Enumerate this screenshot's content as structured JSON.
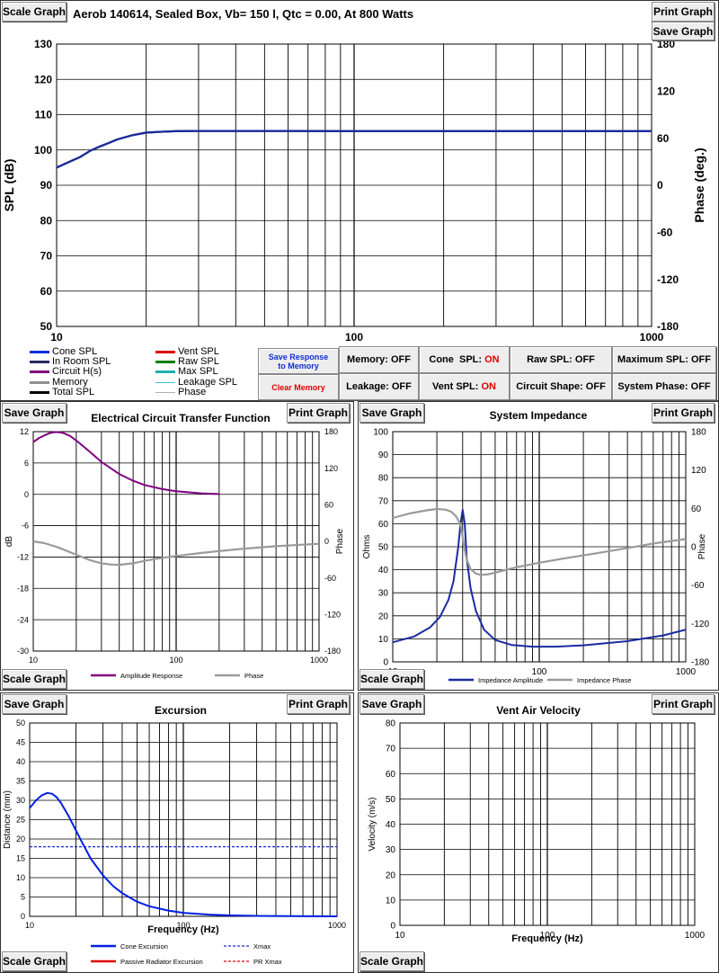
{
  "main": {
    "title": "Aerob 140614,  Sealed Box, Vb= 150 l,  Qtc = 0.00,  At 800 Watts",
    "buttons": {
      "scale": "Scale Graph",
      "print": "Print Graph",
      "save": "Save Graph"
    }
  },
  "legend": {
    "cone": "Cone SPL",
    "room": "In Room SPL",
    "circuit": "Circuit H(s)",
    "memory": "Memory",
    "total": "Total SPL",
    "vent": "Vent SPL",
    "raw": "Raw SPL",
    "max": "Max SPL",
    "leakage": "Leakage SPL",
    "phase": "Phase"
  },
  "controls": {
    "save_response_1": "Save Response",
    "save_response_2": "to Memory",
    "clear_memory": "Clear Memory",
    "memory": "Memory: OFF",
    "leakage": "Leakage: OFF",
    "cone_prefix": "Cone  SPL: ",
    "cone_state": "ON",
    "vent_prefix": "Vent SPL: ",
    "vent_state": "ON",
    "raw": "Raw SPL: OFF",
    "circuit_shape": "Circuit Shape:  OFF",
    "max_spl": "Maximum SPL: OFF",
    "system_phase": "System Phase: OFF"
  },
  "panels": {
    "circuit": {
      "title": "Electrical Circuit Transfer Function"
    },
    "impedance": {
      "title": "System Impedance"
    },
    "excursion": {
      "title": "Excursion"
    },
    "vent": {
      "title": "Vent Air Velocity"
    }
  },
  "chart_data": [
    {
      "id": "spl",
      "type": "line",
      "title": "Aerob 140614,  Sealed Box, Vb= 150 l,  Qtc = 0.00,  At 800 Watts",
      "xscale": "log",
      "xlim": [
        10,
        1000
      ],
      "ylim": [
        50,
        130
      ],
      "y2lim": [
        -180,
        180
      ],
      "ylabel": "SPL (dB)",
      "y2label": "Phase (deg.)",
      "xticks": [
        10,
        100,
        1000
      ],
      "xticklabels": [
        "10",
        "100",
        "1000"
      ],
      "yticks": [
        50,
        60,
        70,
        80,
        90,
        100,
        110,
        120,
        130
      ],
      "yticklabels": [
        "50",
        "60",
        "70",
        "80",
        "90",
        "100",
        "110",
        "120",
        "130"
      ],
      "y2ticks": [
        -180,
        -120,
        -60,
        0,
        60,
        120,
        180
      ],
      "y2ticklabels": [
        "-180",
        "-120",
        "-60",
        "0",
        "60",
        "120",
        "180"
      ],
      "series": [
        {
          "name": "Total SPL",
          "color": "#000000",
          "axis": "y",
          "x": [
            10,
            11,
            12,
            13,
            14,
            15,
            16,
            18,
            20,
            22,
            25,
            30,
            40,
            60,
            100,
            200,
            500,
            1000
          ],
          "y": [
            95,
            96.6,
            98,
            99.8,
            101,
            102,
            103,
            104.2,
            104.9,
            105.1,
            105.3,
            105.4,
            105.4,
            105.4,
            105.3,
            105.3,
            105.3,
            105.3
          ]
        },
        {
          "name": "Cone SPL",
          "color": "#1a2aa0",
          "axis": "y",
          "x": [
            10,
            11,
            12,
            13,
            14,
            15,
            16,
            18,
            20,
            22,
            25,
            30,
            40,
            60,
            100,
            200,
            500,
            1000
          ],
          "y": [
            95,
            96.6,
            98,
            99.8,
            101,
            102,
            103,
            104.2,
            104.9,
            105.1,
            105.3,
            105.4,
            105.4,
            105.4,
            105.3,
            105.3,
            105.3,
            105.3
          ]
        }
      ]
    },
    {
      "id": "circuit",
      "type": "line",
      "title": "Electrical Circuit Transfer Function",
      "xscale": "log",
      "xlim": [
        10,
        1000
      ],
      "ylim": [
        -30,
        12
      ],
      "y2lim": [
        -180,
        180
      ],
      "ylabel": "dB",
      "y2label": "Phase",
      "xticks": [
        10,
        100,
        1000
      ],
      "xticklabels": [
        "10",
        "100",
        "1000"
      ],
      "yticks": [
        -30,
        -24,
        -18,
        -12,
        -6,
        0,
        6,
        12
      ],
      "yticklabels": [
        "-30",
        "-24",
        "-18",
        "-12",
        "-6",
        "0",
        "6",
        "12"
      ],
      "y2ticks": [
        -180,
        -120,
        -60,
        0,
        60,
        120,
        180
      ],
      "y2ticklabels": [
        "-180",
        "-120",
        "-60",
        "0",
        "60",
        "120",
        "180"
      ],
      "legend": [
        "Amplitude Response",
        "Phase"
      ],
      "series": [
        {
          "name": "Amplitude Response",
          "color": "#800080",
          "axis": "y",
          "x": [
            10,
            11,
            12,
            13,
            14,
            15,
            16,
            18,
            20,
            25,
            30,
            40,
            50,
            60,
            80,
            100,
            150,
            200
          ],
          "y": [
            10,
            10.8,
            11.3,
            11.7,
            11.9,
            11.9,
            11.8,
            11.2,
            10.3,
            8.1,
            6.2,
            3.9,
            2.6,
            1.8,
            1,
            0.6,
            0.2,
            0.05
          ]
        },
        {
          "name": "Phase",
          "color": "#9a9a9a",
          "axis": "y2",
          "x": [
            10,
            12,
            15,
            20,
            25,
            30,
            35,
            40,
            50,
            60,
            80,
            100,
            150,
            200,
            300,
            500,
            1000
          ],
          "y": [
            0,
            -3,
            -10,
            -22,
            -31,
            -36,
            -38,
            -38.5,
            -36,
            -32,
            -27,
            -24,
            -19,
            -16,
            -12,
            -8,
            -4
          ]
        }
      ]
    },
    {
      "id": "impedance",
      "type": "line",
      "title": "System Impedance",
      "xscale": "log",
      "xlim": [
        10,
        1000
      ],
      "ylim": [
        0,
        100
      ],
      "y2lim": [
        -180,
        180
      ],
      "ylabel": "Ohms",
      "y2label": "Phase",
      "xticks": [
        10,
        100,
        1000
      ],
      "xticklabels": [
        "10",
        "100",
        "1000"
      ],
      "yticks": [
        0,
        10,
        20,
        30,
        40,
        50,
        60,
        70,
        80,
        90,
        100
      ],
      "yticklabels": [
        "0",
        "10",
        "20",
        "30",
        "40",
        "50",
        "60",
        "70",
        "80",
        "90",
        "100"
      ],
      "y2ticks": [
        -180,
        -120,
        -60,
        0,
        60,
        120,
        180
      ],
      "y2ticklabels": [
        "-180",
        "-120",
        "-60",
        "0",
        "60",
        "120",
        "180"
      ],
      "legend": [
        "Impedance Amplitude",
        "Impedance Phase"
      ],
      "series": [
        {
          "name": "Impedance Amplitude",
          "color": "#1a2aa0",
          "axis": "y",
          "x": [
            10,
            14,
            18,
            21,
            24,
            26,
            28,
            29,
            30,
            31,
            32,
            34,
            37,
            42,
            50,
            65,
            90,
            130,
            200,
            400,
            700,
            1000
          ],
          "y": [
            8.5,
            11,
            15,
            19.5,
            27,
            35,
            50,
            60,
            66,
            60,
            45,
            32,
            22,
            14,
            9.5,
            7.3,
            6.6,
            6.6,
            7.2,
            9,
            11.5,
            14
          ]
        },
        {
          "name": "Impedance Phase",
          "color": "#9a9a9a",
          "axis": "y2",
          "x": [
            10,
            13,
            17,
            20,
            23,
            25,
            27,
            29,
            30,
            31,
            32,
            34,
            37,
            40,
            45,
            55,
            70,
            100,
            150,
            250,
            400,
            600,
            1000
          ],
          "y": [
            45,
            52,
            57,
            59,
            58,
            55,
            48,
            35,
            15,
            -5,
            -20,
            -35,
            -42,
            -44,
            -43,
            -38,
            -32,
            -25,
            -18,
            -10,
            -2,
            5,
            12
          ]
        }
      ]
    },
    {
      "id": "excursion",
      "type": "line",
      "title": "Excursion",
      "xscale": "log",
      "xlim": [
        10,
        1000
      ],
      "ylim": [
        0,
        50
      ],
      "xlabel": "Frequency (Hz)",
      "ylabel": "Distance (mm)",
      "xticks": [
        10,
        100,
        1000
      ],
      "xticklabels": [
        "10",
        "100",
        "1000"
      ],
      "yticks": [
        0,
        5,
        10,
        15,
        20,
        25,
        30,
        35,
        40,
        45,
        50
      ],
      "yticklabels": [
        "0",
        "5",
        "10",
        "15",
        "20",
        "25",
        "30",
        "35",
        "40",
        "45",
        "50"
      ],
      "legend": [
        "Cone Excursion",
        "Passive Radiator Excursion",
        "Xmax",
        "PR Xmax"
      ],
      "xmax": 18,
      "series": [
        {
          "name": "Cone Excursion",
          "color": "#0020e0",
          "axis": "y",
          "x": [
            10,
            11,
            12,
            13,
            14,
            15,
            16,
            18,
            20,
            22,
            25,
            30,
            35,
            40,
            50,
            60,
            80,
            100,
            150,
            200,
            300,
            500,
            1000
          ],
          "y": [
            28,
            30,
            31.3,
            31.9,
            31.7,
            30.8,
            29.3,
            25.8,
            22.2,
            19,
            14.9,
            10.6,
            7.8,
            6,
            3.8,
            2.6,
            1.5,
            0.9,
            0.45,
            0.25,
            0.12,
            0.05,
            0
          ]
        }
      ]
    },
    {
      "id": "vent",
      "type": "line",
      "title": "Vent Air Velocity",
      "xscale": "log",
      "xlim": [
        10,
        1000
      ],
      "ylim": [
        0,
        80
      ],
      "xlabel": "Frequency (Hz)",
      "ylabel": "Velocity (m/s)",
      "xticks": [
        10,
        100,
        1000
      ],
      "xticklabels": [
        "10",
        "100",
        "1000"
      ],
      "yticks": [
        0,
        10,
        20,
        30,
        40,
        50,
        60,
        70,
        80
      ],
      "yticklabels": [
        "0",
        "10",
        "20",
        "30",
        "40",
        "50",
        "60",
        "70",
        "80"
      ],
      "series": []
    }
  ]
}
